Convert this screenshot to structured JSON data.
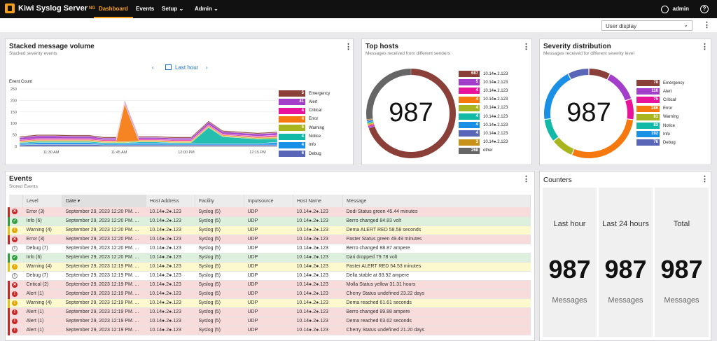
{
  "app": {
    "title": "Kiwi Syslog Server",
    "edition": "NG"
  },
  "nav": {
    "dashboard": "Dashboard",
    "events": "Events",
    "setup": "Setup",
    "admin": "Admin",
    "user": "admin"
  },
  "view_select": "User display",
  "colors": {
    "emergency": "#8b3f39",
    "alert": "#a23ec9",
    "critical": "#e8139b",
    "error": "#f5790f",
    "warning": "#a8b51f",
    "notice": "#13b9a7",
    "info": "#1a8fe6",
    "debug": "#5966b8",
    "other": "#666666",
    "accent": "#f7a11a"
  },
  "stacked": {
    "title": "Stacked message volume",
    "subtitle": "Stacked severity events",
    "period": "Last hour",
    "ylabel": "Event Count",
    "yticks": [
      "250",
      "200",
      "150",
      "100",
      "50",
      "0"
    ],
    "xticks": [
      "11:30 AM",
      "11:45 AM",
      "12:00 PM",
      "12:15 PM"
    ],
    "legend": [
      {
        "name": "Emergency",
        "count": "5",
        "color": "#8b3f39"
      },
      {
        "name": "Alert",
        "count": "41",
        "color": "#a23ec9"
      },
      {
        "name": "Critical",
        "count": "4",
        "color": "#e8139b"
      },
      {
        "name": "Error",
        "count": "4",
        "color": "#f5790f"
      },
      {
        "name": "Warning",
        "count": "5",
        "color": "#a8b51f"
      },
      {
        "name": "Notice",
        "count": "4",
        "color": "#13b9a7"
      },
      {
        "name": "Info",
        "count": "4",
        "color": "#1a8fe6"
      },
      {
        "name": "Debug",
        "count": "6",
        "color": "#5966b8"
      }
    ]
  },
  "tophosts": {
    "title": "Top hosts",
    "subtitle": "Messages received from different senders",
    "total": "987",
    "legend": [
      {
        "count": "687",
        "host": "10.14●.2.123",
        "color": "#8b3f39"
      },
      {
        "count": "5",
        "host": "10.14●.2.123",
        "color": "#a23ec9"
      },
      {
        "count": "4",
        "host": "10.14●.2.123",
        "color": "#e8139b"
      },
      {
        "count": "4",
        "host": "10.14●.2.123",
        "color": "#f5790f"
      },
      {
        "count": "4",
        "host": "10.14●.2.123",
        "color": "#a8b51f"
      },
      {
        "count": "4",
        "host": "10.14●.2.123",
        "color": "#13b9a7"
      },
      {
        "count": "4",
        "host": "10.14●.2.123",
        "color": "#1a8fe6"
      },
      {
        "count": "4",
        "host": "10.14●.2.123",
        "color": "#5966b8"
      },
      {
        "count": "3",
        "host": "10.14●.2.123",
        "color": "#c7911a"
      },
      {
        "count": "268",
        "host": "other",
        "color": "#666666"
      }
    ]
  },
  "severity": {
    "title": "Severity distribution",
    "subtitle": "Messages received for different severity level",
    "total": "987",
    "legend": [
      {
        "count": "78",
        "name": "Emergency",
        "color": "#8b3f39"
      },
      {
        "count": "116",
        "name": "Alert",
        "color": "#a23ec9"
      },
      {
        "count": "75",
        "name": "Critical",
        "color": "#e8139b"
      },
      {
        "count": "286",
        "name": "Error",
        "color": "#f5790f"
      },
      {
        "count": "81",
        "name": "Warning",
        "color": "#a8b51f"
      },
      {
        "count": "83",
        "name": "Notice",
        "color": "#13b9a7"
      },
      {
        "count": "192",
        "name": "Info",
        "color": "#1a8fe6"
      },
      {
        "count": "76",
        "name": "Debug",
        "color": "#5966b8"
      }
    ]
  },
  "events": {
    "title": "Events",
    "subtitle": "Stored Events",
    "columns": [
      "Level",
      "Date",
      "Host Address",
      "Facility",
      "Inputsource",
      "Host Name",
      "Message"
    ],
    "rows": [
      {
        "level": "Error (3)",
        "sev": "error",
        "date": "September 29, 2023 12:20 PM. ...",
        "host": "10.14●.2●.123",
        "facility": "Syslog (5)",
        "input": "UDP",
        "hostname": "10.14●.2●.123",
        "msg": "Dodi Status green 45.44 minutes"
      },
      {
        "level": "Info (6)",
        "sev": "info",
        "date": "September 29, 2023 12:20 PM. ...",
        "host": "10.14●.2●.123",
        "facility": "Syslog (5)",
        "input": "UDP",
        "hostname": "10.14●.2●.123",
        "msg": "Berro changed 84.83 volt"
      },
      {
        "level": "Warning (4)",
        "sev": "warning",
        "date": "September 29, 2023 12:20 PM. ...",
        "host": "10.14●.2●.123",
        "facility": "Syslog (5)",
        "input": "UDP",
        "hostname": "10.14●.2●.123",
        "msg": "Dema ALERT RED 58.58 seconds"
      },
      {
        "level": "Error (3)",
        "sev": "error",
        "date": "September 29, 2023 12:20 PM. ...",
        "host": "10.14●.2●.123",
        "facility": "Syslog (5)",
        "input": "UDP",
        "hostname": "10.14●.2●.123",
        "msg": "Paster Status green 49.49 minutes"
      },
      {
        "level": "Debug (7)",
        "sev": "debug",
        "date": "September 29, 2023 12:20 PM. ...",
        "host": "10.14●.2●.123",
        "facility": "Syslog (5)",
        "input": "UDP",
        "hostname": "10.14●.2●.123",
        "msg": "Berro changed 88.87 ampere"
      },
      {
        "level": "Info (6)",
        "sev": "info",
        "date": "September 29, 2023 12:20 PM. ...",
        "host": "10.14●.2●.123",
        "facility": "Syslog (5)",
        "input": "UDP",
        "hostname": "10.14●.2●.123",
        "msg": "Dari dropped 79.78 volt"
      },
      {
        "level": "Warning (4)",
        "sev": "warning",
        "date": "September 29, 2023 12:19 PM. ...",
        "host": "10.14●.2●.123",
        "facility": "Syslog (5)",
        "input": "UDP",
        "hostname": "10.14●.2●.123",
        "msg": "Paster ALERT RED 54.53 minutes"
      },
      {
        "level": "Debug (7)",
        "sev": "debug",
        "date": "September 29, 2023 12:19 PM. ...",
        "host": "10.14●.2●.123",
        "facility": "Syslog (5)",
        "input": "UDP",
        "hostname": "10.14●.2●.123",
        "msg": "Della stable at 93.92 ampere"
      },
      {
        "level": "Critical (2)",
        "sev": "critical",
        "date": "September 29, 2023 12:19 PM. ...",
        "host": "10.14●.2●.123",
        "facility": "Syslog (5)",
        "input": "UDP",
        "hostname": "10.14●.2●.123",
        "msg": "Molla Status yellow 31.31 hours"
      },
      {
        "level": "Alert (1)",
        "sev": "alert",
        "date": "September 29, 2023 12:19 PM. ...",
        "host": "10.14●.2●.123",
        "facility": "Syslog (5)",
        "input": "UDP",
        "hostname": "10.14●.2●.123",
        "msg": "Cherry Status undefined 23.22 days"
      },
      {
        "level": "Warning (4)",
        "sev": "warning",
        "date": "September 29, 2023 12:19 PM. ...",
        "host": "10.14●.2●.123",
        "facility": "Syslog (5)",
        "input": "UDP",
        "hostname": "10.14●.2●.123",
        "msg": "Dema reached 61.61 seconds"
      },
      {
        "level": "Alert (1)",
        "sev": "alert",
        "date": "September 29, 2023 12:19 PM. ...",
        "host": "10.14●.2●.123",
        "facility": "Syslog (5)",
        "input": "UDP",
        "hostname": "10.14●.2●.123",
        "msg": "Berro changed 89.88 ampere"
      },
      {
        "level": "Alert (1)",
        "sev": "alert",
        "date": "September 29, 2023 12:19 PM. ...",
        "host": "10.14●.2●.123",
        "facility": "Syslog (5)",
        "input": "UDP",
        "hostname": "10.14●.2●.123",
        "msg": "Dema reached 63.62 seconds"
      },
      {
        "level": "Alert (1)",
        "sev": "alert",
        "date": "September 29, 2023 12:19 PM. ...",
        "host": "10.14●.2●.123",
        "facility": "Syslog (5)",
        "input": "UDP",
        "hostname": "10.14●.2●.123",
        "msg": "Cherry Status undefined 21.20 days"
      }
    ]
  },
  "counters": {
    "title": "Counters",
    "items": [
      {
        "label": "Last hour",
        "value": "987",
        "unit": "Messages"
      },
      {
        "label": "Last 24 hours",
        "value": "987",
        "unit": "Messages"
      },
      {
        "label": "Total",
        "value": "987",
        "unit": "Messages"
      }
    ]
  }
}
